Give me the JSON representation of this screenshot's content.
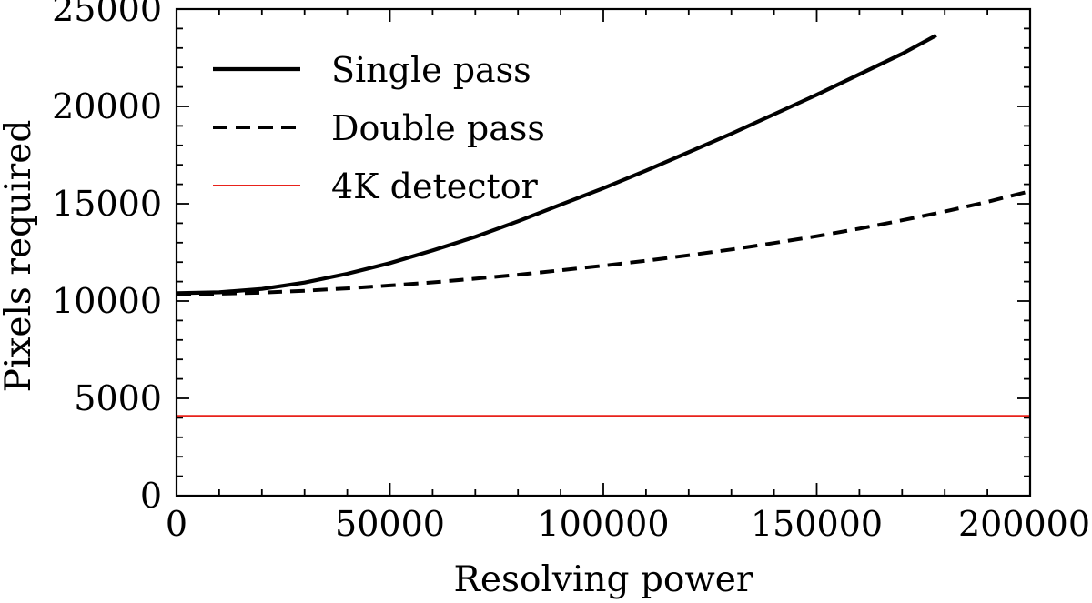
{
  "chart_data": {
    "type": "line",
    "title": "",
    "xlabel": "Resolving power",
    "ylabel": "Pixels required",
    "xlim": [
      0,
      200000
    ],
    "ylim": [
      0,
      25000
    ],
    "xticks": [
      0,
      50000,
      100000,
      150000,
      200000
    ],
    "yticks": [
      0,
      5000,
      10000,
      15000,
      20000,
      25000
    ],
    "legend_position": "top-left",
    "grid": false,
    "series": [
      {
        "name": "Single pass",
        "style": "solid",
        "color": "#000000",
        "x": [
          0,
          10000,
          20000,
          30000,
          40000,
          50000,
          60000,
          70000,
          80000,
          90000,
          100000,
          110000,
          120000,
          130000,
          140000,
          150000,
          160000,
          170000,
          178000
        ],
        "y": [
          10400,
          10450,
          10620,
          10950,
          11400,
          11950,
          12600,
          13300,
          14100,
          14950,
          15800,
          16700,
          17650,
          18600,
          19600,
          20600,
          21650,
          22700,
          23650
        ]
      },
      {
        "name": "Double pass",
        "style": "dashed",
        "color": "#000000",
        "x": [
          0,
          10000,
          20000,
          30000,
          40000,
          50000,
          60000,
          70000,
          80000,
          90000,
          100000,
          110000,
          120000,
          130000,
          140000,
          150000,
          160000,
          170000,
          180000,
          190000,
          200000
        ],
        "y": [
          10350,
          10380,
          10430,
          10530,
          10650,
          10800,
          10960,
          11150,
          11350,
          11580,
          11820,
          12070,
          12350,
          12650,
          12980,
          13330,
          13720,
          14150,
          14600,
          15100,
          15650
        ]
      },
      {
        "name": "4K detector",
        "style": "solid",
        "color": "#e8221b",
        "x": [
          0,
          200000
        ],
        "y": [
          4096,
          4096
        ]
      }
    ]
  }
}
